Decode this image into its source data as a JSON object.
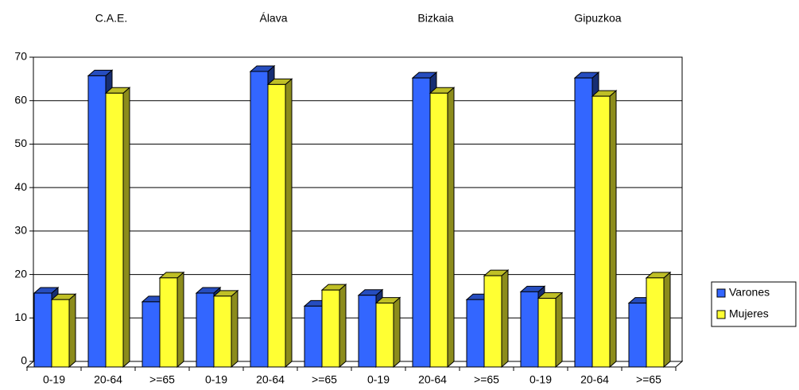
{
  "chart_data": {
    "type": "bar3d",
    "group_labels": [
      "C.A.E.",
      "Álava",
      "Bizkaia",
      "Gipuzkoa"
    ],
    "categories": [
      "0-19",
      "20-64",
      ">=65",
      "0-19",
      "20-64",
      ">=65",
      "0-19",
      "20-64",
      ">=65",
      "0-19",
      "20-64",
      ">=65"
    ],
    "series": [
      {
        "name": "Varones",
        "color": "#3366ff",
        "values": [
          17,
          67,
          15,
          17,
          68,
          14,
          16.5,
          66.5,
          15.5,
          17.3,
          66.5,
          14.7
        ]
      },
      {
        "name": "Mujeres",
        "color": "#ffff33",
        "values": [
          15.5,
          63,
          20.5,
          16.3,
          65,
          17.7,
          14.7,
          63,
          21,
          15.8,
          62.3,
          20.5
        ]
      }
    ],
    "ylim": [
      0,
      70
    ],
    "yticks": [
      0,
      10,
      20,
      30,
      40,
      50,
      60,
      70
    ],
    "grid": true,
    "legend": "right"
  }
}
